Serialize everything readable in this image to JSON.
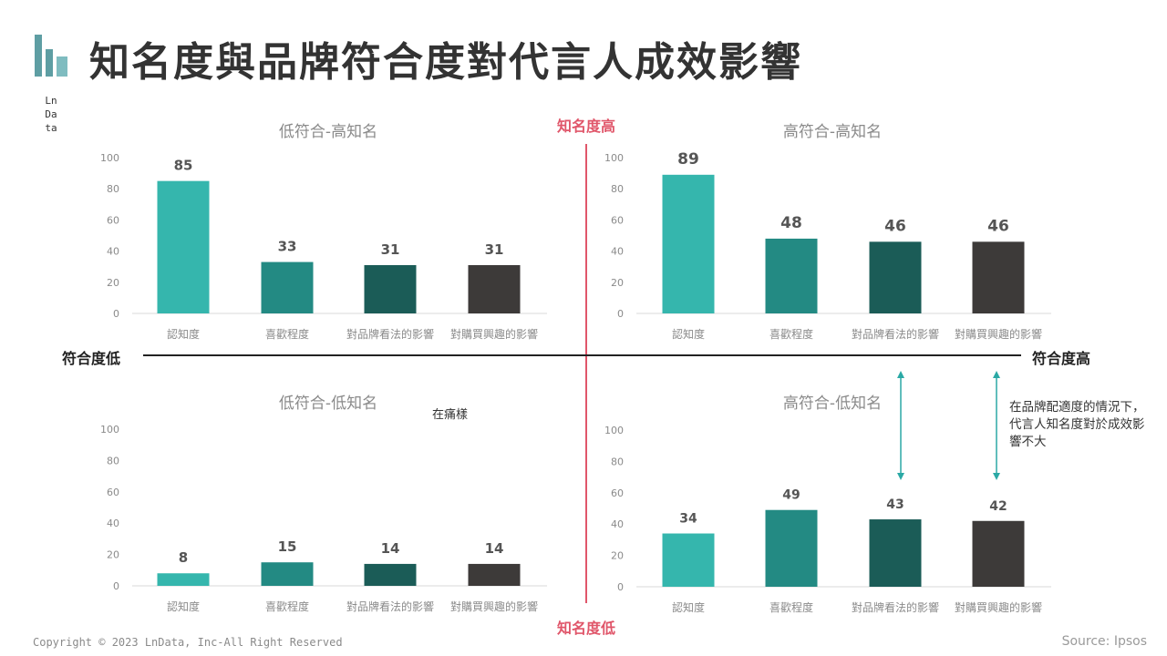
{
  "header": {
    "title": "知名度與品牌符合度對代言人成效影響",
    "brand_vertical": "LnData"
  },
  "axes": {
    "top_label": "知名度高",
    "bottom_label": "知名度低",
    "left_label": "符合度低",
    "right_label": "符合度高"
  },
  "annotations": {
    "bottom_left_note": "在痛樣",
    "side_note": "在品牌配適度的情況下，代言人知名度對於成效影響不大"
  },
  "footer": {
    "copyright": "Copyright © 2023 LnData, Inc-All Right Reserved",
    "source": "Source: Ipsos"
  },
  "colors": {
    "bar_colors": [
      "#35b6ad",
      "#238a83",
      "#1b5c57",
      "#3d3a39"
    ],
    "axis_red": "#e0566a",
    "axis_dark": "#222222",
    "arrow_teal": "#2aa9a5",
    "tick_text": "#8a8a8a",
    "value_text": "#555555",
    "logo": "#5e9ea3"
  },
  "chart_data": [
    {
      "type": "bar",
      "title": "低符合-高知名",
      "categories": [
        "認知度",
        "喜歡程度",
        "對品牌看法的影響",
        "對購買興趣的影響"
      ],
      "values": [
        85,
        33,
        31,
        31
      ],
      "ylim": [
        0,
        100
      ],
      "yticks": [
        0,
        20,
        40,
        60,
        80,
        100
      ],
      "grid": false,
      "legend": "none"
    },
    {
      "type": "bar",
      "title": "高符合-高知名",
      "categories": [
        "認知度",
        "喜歡程度",
        "對品牌看法的影響",
        "對購買興趣的影響"
      ],
      "values": [
        89,
        48,
        46,
        46
      ],
      "ylim": [
        0,
        100
      ],
      "yticks": [
        0,
        20,
        40,
        60,
        80,
        100
      ],
      "grid": false,
      "legend": "none"
    },
    {
      "type": "bar",
      "title": "低符合-低知名",
      "categories": [
        "認知度",
        "喜歡程度",
        "對品牌看法的影響",
        "對購買興趣的影響"
      ],
      "values": [
        8,
        15,
        14,
        14
      ],
      "ylim": [
        0,
        100
      ],
      "yticks": [
        0,
        20,
        40,
        60,
        80,
        100
      ],
      "grid": false,
      "legend": "none"
    },
    {
      "type": "bar",
      "title": "高符合-低知名",
      "categories": [
        "認知度",
        "喜歡程度",
        "對品牌看法的影響",
        "對購買興趣的影響"
      ],
      "values": [
        34,
        49,
        43,
        42
      ],
      "ylim": [
        0,
        100
      ],
      "yticks": [
        0,
        20,
        40,
        60,
        80,
        100
      ],
      "grid": false,
      "legend": "none"
    }
  ]
}
